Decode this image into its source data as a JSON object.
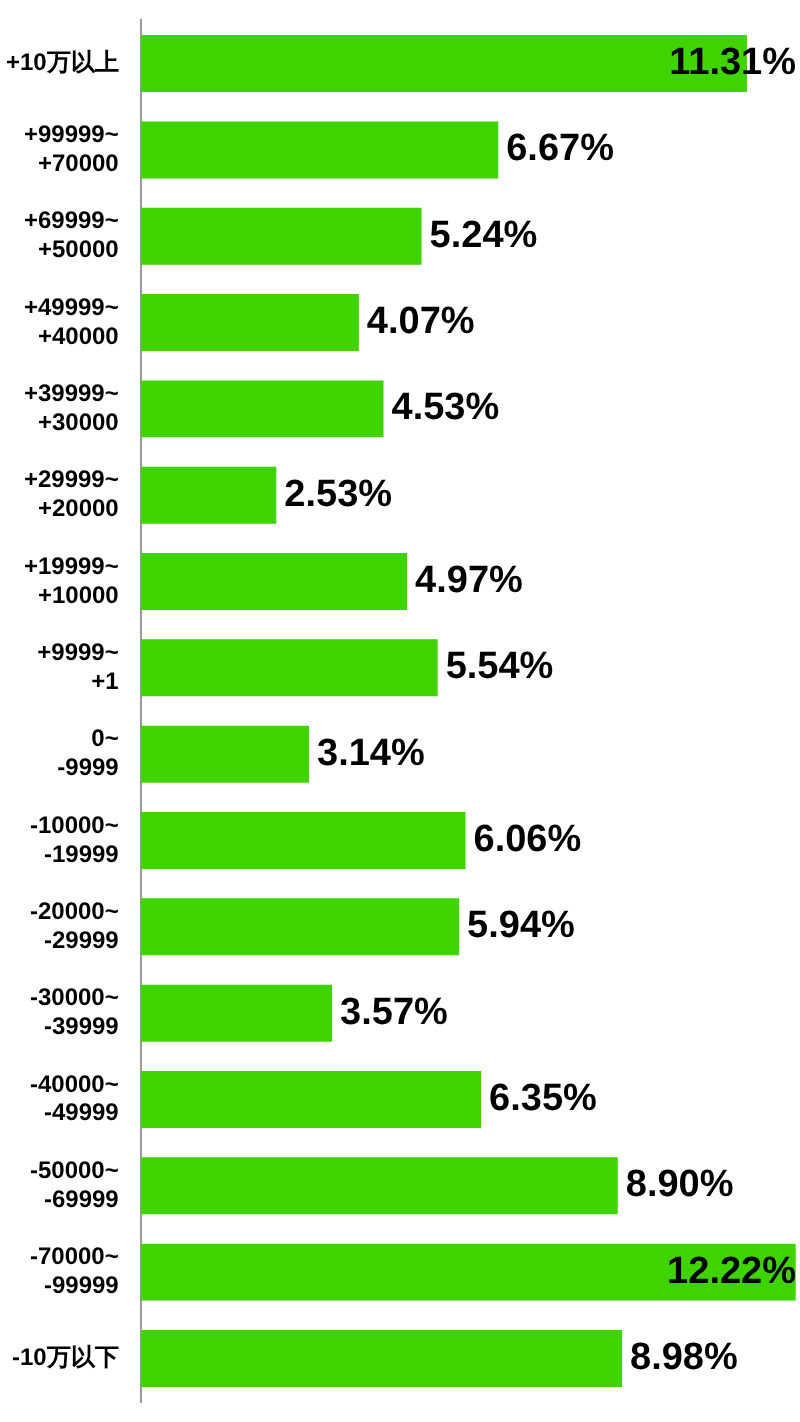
{
  "chart_data": {
    "type": "bar",
    "orientation": "horizontal",
    "categories": [
      "+10万以上",
      "+99999~\n+70000",
      "+69999~\n+50000",
      "+49999~\n+40000",
      "+39999~\n+30000",
      "+29999~\n+20000",
      "+19999~\n+10000",
      "+9999~\n+1",
      "0~\n-9999",
      "-10000~\n-19999",
      "-20000~\n-29999",
      "-30000~\n-39999",
      "-40000~\n-49999",
      "-50000~\n-69999",
      "-70000~\n-99999",
      "-10万以下"
    ],
    "values": [
      11.31,
      6.67,
      5.24,
      4.07,
      4.53,
      2.53,
      4.97,
      5.54,
      3.14,
      6.06,
      5.94,
      3.57,
      6.35,
      8.9,
      12.22,
      8.98
    ],
    "value_labels": [
      "11.31%",
      "6.67%",
      "5.24%",
      "4.07%",
      "4.53%",
      "2.53%",
      "4.97%",
      "5.54%",
      "3.14%",
      "6.06%",
      "5.94%",
      "3.57%",
      "6.35%",
      "8.90%",
      "12.22%",
      "8.98%"
    ],
    "color": "#3fd400",
    "xlim": [
      0,
      12.3
    ],
    "tick_labels": "y",
    "legend": false
  }
}
